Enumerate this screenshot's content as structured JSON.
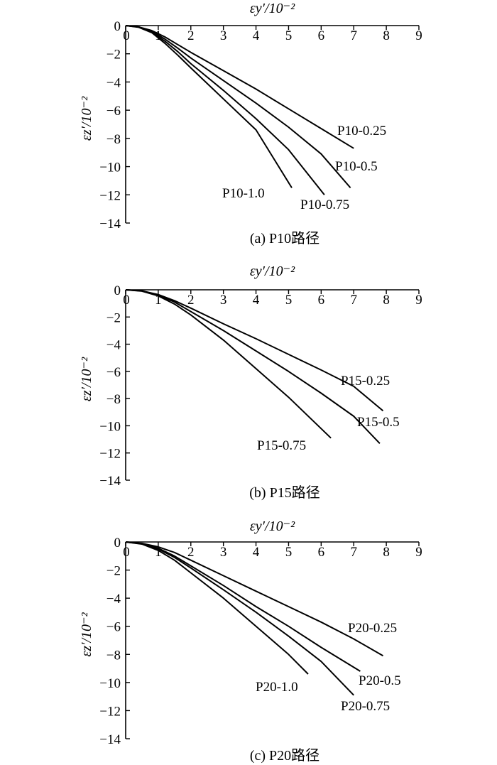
{
  "chart_data": [
    {
      "type": "line",
      "caption": "(a) P10路径",
      "xlabel": "εy′/10⁻²",
      "ylabel": "εz′/10⁻²",
      "xlim": [
        0,
        9
      ],
      "ylim": [
        -14,
        0
      ],
      "xticks": [
        "0",
        "1",
        "2",
        "3",
        "4",
        "5",
        "6",
        "7",
        "8",
        "9"
      ],
      "yticks": [
        "0",
        "−2",
        "−4",
        "−6",
        "−8",
        "−10",
        "−12",
        "−14"
      ],
      "grid": false,
      "series": [
        {
          "name": "P10-0.25",
          "x": [
            0,
            0.4,
            0.8,
            1.2,
            1.6,
            2.0,
            3.0,
            4.0,
            5.0,
            6.0,
            7.0
          ],
          "y": [
            0,
            -0.1,
            -0.35,
            -0.8,
            -1.35,
            -1.9,
            -3.2,
            -4.5,
            -5.9,
            -7.3,
            -8.7
          ]
        },
        {
          "name": "P10-0.5",
          "x": [
            0,
            0.4,
            0.8,
            1.2,
            1.6,
            2.0,
            3.0,
            4.0,
            5.0,
            6.0,
            6.9
          ],
          "y": [
            0,
            -0.1,
            -0.4,
            -0.95,
            -1.6,
            -2.3,
            -3.9,
            -5.5,
            -7.2,
            -9.1,
            -11.5
          ]
        },
        {
          "name": "P10-0.75",
          "x": [
            0,
            0.4,
            0.8,
            1.2,
            1.6,
            2.0,
            3.0,
            4.0,
            5.0,
            6.1
          ],
          "y": [
            0,
            -0.1,
            -0.45,
            -1.1,
            -1.85,
            -2.7,
            -4.6,
            -6.6,
            -8.8,
            -12.0
          ]
        },
        {
          "name": "P10-1.0",
          "x": [
            0,
            0.4,
            0.8,
            1.2,
            1.6,
            2.0,
            3.0,
            4.0,
            5.1
          ],
          "y": [
            0,
            -0.12,
            -0.5,
            -1.25,
            -2.1,
            -3.0,
            -5.2,
            -7.4,
            -11.5
          ]
        }
      ]
    },
    {
      "type": "line",
      "caption": "(b) P15路径",
      "xlabel": "εy′/10⁻²",
      "ylabel": "εz′/10⁻²",
      "xlim": [
        0,
        9
      ],
      "ylim": [
        -14,
        0
      ],
      "xticks": [
        "0",
        "1",
        "2",
        "3",
        "4",
        "5",
        "6",
        "7",
        "8",
        "9"
      ],
      "yticks": [
        "0",
        "−2",
        "−4",
        "−6",
        "−8",
        "−10",
        "−12",
        "−14"
      ],
      "grid": false,
      "series": [
        {
          "name": "P15-0.25",
          "x": [
            0,
            0.5,
            1.0,
            1.5,
            2.0,
            3.0,
            4.0,
            5.0,
            6.0,
            7.0,
            7.9
          ],
          "y": [
            0,
            -0.08,
            -0.35,
            -0.8,
            -1.35,
            -2.5,
            -3.6,
            -4.75,
            -5.9,
            -7.1,
            -8.9
          ]
        },
        {
          "name": "P15-0.5",
          "x": [
            0,
            0.5,
            1.0,
            1.5,
            2.0,
            3.0,
            4.0,
            5.0,
            6.0,
            7.0,
            7.8
          ],
          "y": [
            0,
            -0.08,
            -0.4,
            -0.9,
            -1.6,
            -3.0,
            -4.5,
            -6.0,
            -7.6,
            -9.3,
            -11.3
          ]
        },
        {
          "name": "P15-0.75",
          "x": [
            0,
            0.5,
            1.0,
            1.5,
            2.0,
            3.0,
            4.0,
            5.0,
            6.3
          ],
          "y": [
            0,
            -0.1,
            -0.45,
            -1.05,
            -1.85,
            -3.7,
            -5.8,
            -7.9,
            -10.9
          ]
        }
      ]
    },
    {
      "type": "line",
      "caption": "(c) P20路径",
      "xlabel": "εy′/10⁻²",
      "ylabel": "εz′/10⁻²",
      "xlim": [
        0,
        9
      ],
      "ylim": [
        -14,
        0
      ],
      "xticks": [
        "0",
        "1",
        "2",
        "3",
        "4",
        "5",
        "6",
        "7",
        "8",
        "9"
      ],
      "yticks": [
        "0",
        "−2",
        "−4",
        "−6",
        "−8",
        "−10",
        "−12",
        "−14"
      ],
      "grid": false,
      "series": [
        {
          "name": "P20-0.25",
          "x": [
            0,
            0.5,
            1.0,
            1.5,
            2.0,
            3.0,
            4.0,
            5.0,
            6.0,
            7.0,
            7.9
          ],
          "y": [
            0,
            -0.1,
            -0.35,
            -0.75,
            -1.3,
            -2.4,
            -3.5,
            -4.6,
            -5.7,
            -6.9,
            -8.1
          ]
        },
        {
          "name": "P20-0.5",
          "x": [
            0,
            0.5,
            1.0,
            1.5,
            2.0,
            3.0,
            4.0,
            5.0,
            6.0,
            7.2
          ],
          "y": [
            0,
            -0.12,
            -0.45,
            -1.0,
            -1.7,
            -3.1,
            -4.6,
            -6.0,
            -7.5,
            -9.2
          ]
        },
        {
          "name": "P20-0.75",
          "x": [
            0,
            0.5,
            1.0,
            1.5,
            2.0,
            3.0,
            4.0,
            5.0,
            6.0,
            7.0
          ],
          "y": [
            0,
            -0.13,
            -0.5,
            -1.1,
            -1.85,
            -3.4,
            -5.0,
            -6.7,
            -8.5,
            -10.9
          ]
        },
        {
          "name": "P20-1.0",
          "x": [
            0,
            0.5,
            1.0,
            1.5,
            2.0,
            3.0,
            4.0,
            5.0,
            5.6
          ],
          "y": [
            0,
            -0.15,
            -0.6,
            -1.3,
            -2.2,
            -4.0,
            -6.0,
            -8.0,
            -9.4
          ]
        }
      ]
    }
  ]
}
